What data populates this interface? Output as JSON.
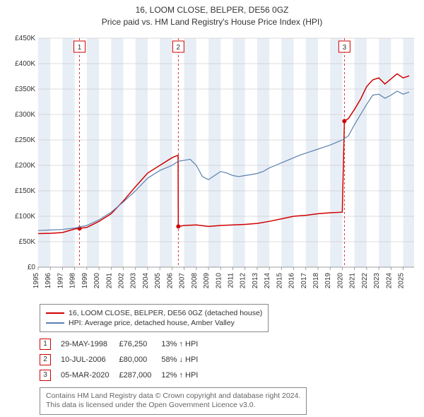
{
  "title_line1": "16, LOOM CLOSE, BELPER, DE56 0GZ",
  "title_line2": "Price paid vs. HM Land Registry's House Price Index (HPI)",
  "chart": {
    "type": "line",
    "background_color": "#ffffff",
    "plot_bg_bands_color": "#e8eef5",
    "grid_color": "#bdbdbd",
    "axis_color": "#888888",
    "xlim": [
      1995,
      2025.9
    ],
    "ylim": [
      0,
      450000
    ],
    "yticks": [
      0,
      50000,
      100000,
      150000,
      200000,
      250000,
      300000,
      350000,
      400000,
      450000
    ],
    "ytick_labels": [
      "£0",
      "£50K",
      "£100K",
      "£150K",
      "£200K",
      "£250K",
      "£300K",
      "£350K",
      "£400K",
      "£450K"
    ],
    "xticks": [
      1995,
      1996,
      1997,
      1998,
      1999,
      2000,
      2001,
      2002,
      2003,
      2004,
      2005,
      2006,
      2007,
      2008,
      2009,
      2010,
      2011,
      2012,
      2013,
      2014,
      2015,
      2016,
      2017,
      2018,
      2019,
      2020,
      2021,
      2022,
      2023,
      2024,
      2025
    ],
    "label_fontsize": 10,
    "series": [
      {
        "name": "property",
        "label": "16, LOOM CLOSE, BELPER, DE56 0GZ (detached house)",
        "color": "#d00000",
        "line_width": 1.5,
        "data": [
          [
            1995,
            66000
          ],
          [
            1996,
            66500
          ],
          [
            1997,
            68000
          ],
          [
            1998,
            75000
          ],
          [
            1998.4,
            76250
          ],
          [
            1999,
            78000
          ],
          [
            2000,
            90000
          ],
          [
            2001,
            105000
          ],
          [
            2002,
            130000
          ],
          [
            2003,
            158000
          ],
          [
            2004,
            185000
          ],
          [
            2005,
            200000
          ],
          [
            2006,
            215000
          ],
          [
            2006.5,
            220000
          ],
          [
            2006.52,
            80000
          ],
          [
            2007,
            82000
          ],
          [
            2008,
            83000
          ],
          [
            2009,
            80000
          ],
          [
            2010,
            82000
          ],
          [
            2011,
            83000
          ],
          [
            2012,
            84000
          ],
          [
            2013,
            86000
          ],
          [
            2014,
            90000
          ],
          [
            2015,
            95000
          ],
          [
            2016,
            100000
          ],
          [
            2017,
            102000
          ],
          [
            2018,
            105000
          ],
          [
            2019,
            107000
          ],
          [
            2020,
            108000
          ],
          [
            2020.17,
            287000
          ],
          [
            2020.5,
            292000
          ],
          [
            2021,
            310000
          ],
          [
            2021.5,
            330000
          ],
          [
            2022,
            355000
          ],
          [
            2022.5,
            368000
          ],
          [
            2023,
            372000
          ],
          [
            2023.5,
            360000
          ],
          [
            2024,
            370000
          ],
          [
            2024.5,
            380000
          ],
          [
            2025,
            372000
          ],
          [
            2025.5,
            376000
          ]
        ]
      },
      {
        "name": "hpi",
        "label": "HPI: Average price, detached house, Amber Valley",
        "color": "#5b7fb0",
        "line_width": 1.2,
        "data": [
          [
            1995,
            72000
          ],
          [
            1996,
            73000
          ],
          [
            1997,
            74000
          ],
          [
            1998,
            77000
          ],
          [
            1999,
            82000
          ],
          [
            2000,
            93000
          ],
          [
            2001,
            108000
          ],
          [
            2002,
            128000
          ],
          [
            2003,
            150000
          ],
          [
            2004,
            175000
          ],
          [
            2005,
            190000
          ],
          [
            2006,
            200000
          ],
          [
            2006.5,
            208000
          ],
          [
            2007,
            210000
          ],
          [
            2007.5,
            212000
          ],
          [
            2008,
            200000
          ],
          [
            2008.5,
            178000
          ],
          [
            2009,
            172000
          ],
          [
            2009.5,
            180000
          ],
          [
            2010,
            188000
          ],
          [
            2010.5,
            185000
          ],
          [
            2011,
            180000
          ],
          [
            2011.5,
            178000
          ],
          [
            2012,
            180000
          ],
          [
            2012.5,
            182000
          ],
          [
            2013,
            184000
          ],
          [
            2013.5,
            188000
          ],
          [
            2014,
            195000
          ],
          [
            2014.5,
            200000
          ],
          [
            2015,
            205000
          ],
          [
            2015.5,
            210000
          ],
          [
            2016,
            215000
          ],
          [
            2016.5,
            220000
          ],
          [
            2017,
            224000
          ],
          [
            2017.5,
            228000
          ],
          [
            2018,
            232000
          ],
          [
            2018.5,
            236000
          ],
          [
            2019,
            240000
          ],
          [
            2019.5,
            245000
          ],
          [
            2020,
            250000
          ],
          [
            2020.5,
            258000
          ],
          [
            2021,
            280000
          ],
          [
            2021.5,
            300000
          ],
          [
            2022,
            320000
          ],
          [
            2022.5,
            338000
          ],
          [
            2023,
            340000
          ],
          [
            2023.5,
            332000
          ],
          [
            2024,
            338000
          ],
          [
            2024.5,
            346000
          ],
          [
            2025,
            340000
          ],
          [
            2025.5,
            344000
          ]
        ]
      }
    ],
    "event_markers": [
      {
        "n": 1,
        "x": 1998.4,
        "y": 76250,
        "line_color": "#d00000"
      },
      {
        "n": 2,
        "x": 2006.52,
        "y": 80000,
        "line_color": "#d00000"
      },
      {
        "n": 3,
        "x": 2020.17,
        "y": 287000,
        "line_color": "#d00000"
      }
    ],
    "marker_dot_color": "#d00000",
    "marker_dot_radius": 3,
    "event_label_box_border": "#d00000"
  },
  "legend": {
    "border_color": "#888888",
    "items": [
      {
        "color": "#d00000",
        "label": "16, LOOM CLOSE, BELPER, DE56 0GZ (detached house)"
      },
      {
        "color": "#5b7fb0",
        "label": "HPI: Average price, detached house, Amber Valley"
      }
    ]
  },
  "events_table": {
    "rows": [
      {
        "n": "1",
        "date": "29-MAY-1998",
        "price": "£76,250",
        "delta": "13% ↑ HPI"
      },
      {
        "n": "2",
        "date": "10-JUL-2006",
        "price": "£80,000",
        "delta": "58% ↓ HPI"
      },
      {
        "n": "3",
        "date": "05-MAR-2020",
        "price": "£287,000",
        "delta": "12% ↑ HPI"
      }
    ]
  },
  "footer": {
    "line1": "Contains HM Land Registry data © Crown copyright and database right 2024.",
    "line2": "This data is licensed under the Open Government Licence v3.0."
  }
}
